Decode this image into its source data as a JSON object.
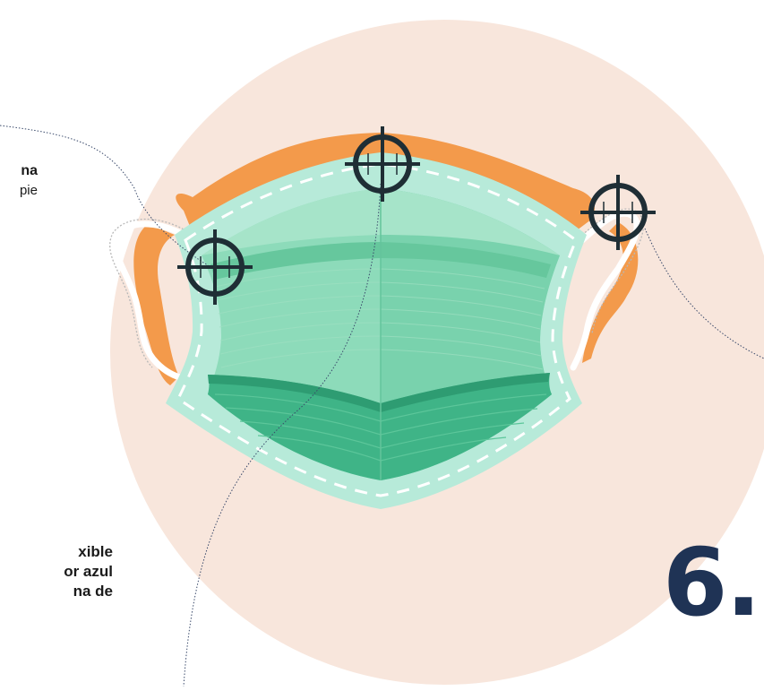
{
  "labels": {
    "top_left_line1": "na",
    "top_left_line2": "pie",
    "bottom_left_line1": "xible",
    "bottom_left_line2": "or azul",
    "bottom_left_line3": "na de"
  },
  "step_number": "6.",
  "colors": {
    "circle_bg": "#f8e6dc",
    "mask_mint": "#b7ead9",
    "mask_green": "#73cfa9",
    "mask_dark_green": "#3fb487",
    "strap_orange": "#f39a4b",
    "target_dark": "#1f2e35",
    "number_navy": "#1f3355"
  },
  "icons": [
    "crosshair-target-icon"
  ]
}
